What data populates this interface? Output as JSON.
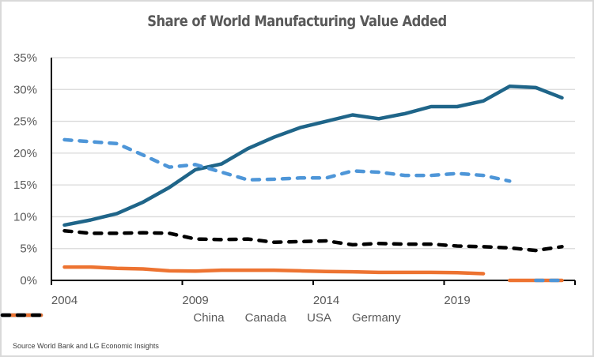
{
  "chart_data": {
    "type": "line",
    "title": "Share of World Manufacturing Value Added",
    "xlabel": "",
    "ylabel": "",
    "categories": [
      "2004",
      "2005",
      "2006",
      "2007",
      "2008",
      "2009",
      "2010",
      "2011",
      "2012",
      "2013",
      "2014",
      "2015",
      "2016",
      "2017",
      "2018",
      "2019",
      "2020",
      "2021",
      "2022",
      "2023"
    ],
    "x_tick_labels": [
      "2004",
      "2009",
      "2014",
      "2019"
    ],
    "y_tick_labels": [
      "0%",
      "5%",
      "10%",
      "15%",
      "20%",
      "25%",
      "30%",
      "35%"
    ],
    "ylim": [
      0,
      35
    ],
    "y_unit": "%",
    "grid": "horizontal",
    "legend_position": "bottom",
    "series": [
      {
        "name": "China",
        "color": "#1f6589",
        "style": "solid",
        "values": [
          8.7,
          9.5,
          10.5,
          12.3,
          14.6,
          17.4,
          18.3,
          20.7,
          22.5,
          24.0,
          25.0,
          26.0,
          25.4,
          26.2,
          27.3,
          27.3,
          28.2,
          30.5,
          30.3,
          28.7
        ]
      },
      {
        "name": "Canada",
        "color": "#ed7331",
        "style": "solid",
        "values": [
          2.1,
          2.1,
          1.9,
          1.8,
          1.5,
          1.45,
          1.6,
          1.6,
          1.6,
          1.5,
          1.4,
          1.35,
          1.25,
          1.25,
          1.25,
          1.2,
          1.05,
          0,
          0,
          0
        ]
      },
      {
        "name": "USA",
        "color": "#4e96d8",
        "style": "dashed",
        "values": [
          22.1,
          21.8,
          21.5,
          19.7,
          17.8,
          18.2,
          17.0,
          15.8,
          15.9,
          16.1,
          16.1,
          17.2,
          17.0,
          16.5,
          16.5,
          16.8,
          16.5,
          15.6,
          0,
          0
        ]
      },
      {
        "name": "Germany",
        "color": "#000000",
        "style": "dashed",
        "values": [
          7.8,
          7.4,
          7.4,
          7.5,
          7.4,
          6.5,
          6.4,
          6.5,
          6.0,
          6.1,
          6.2,
          5.6,
          5.8,
          5.7,
          5.7,
          5.4,
          5.3,
          5.1,
          4.7,
          5.3
        ]
      }
    ],
    "source": "Source World Bank and LG Economic Insights"
  }
}
